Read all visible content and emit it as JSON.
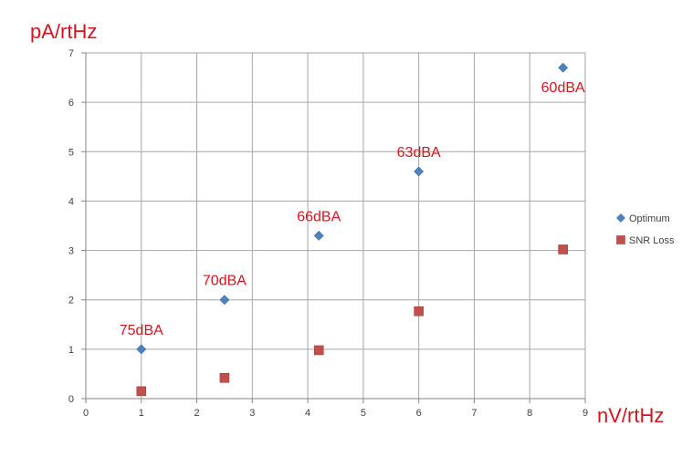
{
  "chart_data": {
    "type": "scatter",
    "xlabel": "nV/rtHz",
    "ylabel": "pA/rtHz",
    "xlim": [
      0,
      9
    ],
    "ylim": [
      0,
      7
    ],
    "x_ticks": [
      0,
      1,
      2,
      3,
      4,
      5,
      6,
      7,
      8,
      9
    ],
    "y_ticks": [
      0,
      1,
      2,
      3,
      4,
      5,
      6,
      7
    ],
    "grid": true,
    "legend_position": "right",
    "series": [
      {
        "name": "Optimum",
        "marker": "diamond",
        "color": "#4f81bd",
        "points": [
          {
            "x": 1.0,
            "y": 1.0
          },
          {
            "x": 2.5,
            "y": 2.0
          },
          {
            "x": 4.2,
            "y": 3.3
          },
          {
            "x": 6.0,
            "y": 4.6
          },
          {
            "x": 8.6,
            "y": 6.7
          }
        ]
      },
      {
        "name": "SNR Loss",
        "marker": "square",
        "color": "#c0504d",
        "points": [
          {
            "x": 1.0,
            "y": 0.15
          },
          {
            "x": 2.5,
            "y": 0.42
          },
          {
            "x": 4.2,
            "y": 0.98
          },
          {
            "x": 6.0,
            "y": 1.77
          },
          {
            "x": 8.6,
            "y": 3.02
          }
        ]
      }
    ],
    "annotations": [
      {
        "text": "75dBA",
        "x": 1.0,
        "y": 1.0
      },
      {
        "text": "70dBA",
        "x": 2.5,
        "y": 2.0
      },
      {
        "text": "66dBA",
        "x": 4.2,
        "y": 3.3
      },
      {
        "text": "63dBA",
        "x": 6.0,
        "y": 4.6
      },
      {
        "text": "60dBA",
        "x": 8.6,
        "y": 6.7
      }
    ],
    "annotation_color": "#d7141e",
    "axis_label_color": "#d7141e"
  }
}
